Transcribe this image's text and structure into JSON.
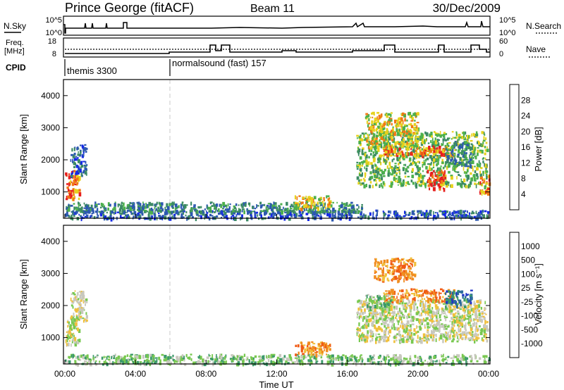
{
  "header": {
    "station": "Prince George (fitACF)",
    "beam": "Beam 11",
    "date": "30/Dec/2009"
  },
  "noise_panel": {
    "left_label": "N.Sky",
    "left_ticks": [
      "10^5",
      "10^0"
    ],
    "right_ticks": [
      "10^5",
      "10^0"
    ],
    "right_label": "N.Search"
  },
  "freq_panel": {
    "left_label_1": "Freq.",
    "left_label_2": "[MHz]",
    "left_ticks": [
      "18",
      "8"
    ],
    "right_ticks": [
      "60",
      "0"
    ],
    "right_label": "Nave"
  },
  "cpid": {
    "label": "CPID",
    "segments": [
      {
        "name": "themis 3300",
        "start_hour": 0
      },
      {
        "name": "normalsound (fast) 157",
        "start_hour": 6
      }
    ]
  },
  "chart_data": [
    {
      "type": "heatmap",
      "title": "Power",
      "ylabel": "Slant Range [km]",
      "xlabel": "Time UT",
      "x_range_hours": [
        0,
        24
      ],
      "ylim": [
        180,
        4500
      ],
      "y_ticks": [
        "4000",
        "3000",
        "2000",
        "1000"
      ],
      "colorbar_label": "Power [dB]",
      "colorbar_ticks": [
        "28",
        "24",
        "20",
        "16",
        "12",
        "8",
        "4"
      ],
      "colors": [
        "#1428e6",
        "#2c58b0",
        "#3c8a64",
        "#4cb04c",
        "#e6d21e",
        "#f07814",
        "#e61e1e"
      ],
      "regions": [
        {
          "t": [
            0.0,
            0.8
          ],
          "r": [
            800,
            1700
          ],
          "level": 5
        },
        {
          "t": [
            0.3,
            1.2
          ],
          "r": [
            1500,
            2500
          ],
          "level": 1
        },
        {
          "t": [
            0.0,
            24.0
          ],
          "r": [
            200,
            450
          ],
          "level": 1
        },
        {
          "t": [
            0.0,
            16.8
          ],
          "r": [
            400,
            700
          ],
          "level": 2
        },
        {
          "t": [
            13.0,
            15.0
          ],
          "r": [
            500,
            900
          ],
          "level": 4
        },
        {
          "t": [
            16.5,
            23.9
          ],
          "r": [
            1200,
            2900
          ],
          "level": 3
        },
        {
          "t": [
            17.0,
            20.0
          ],
          "r": [
            2400,
            3500
          ],
          "level": 4
        },
        {
          "t": [
            18.0,
            22.0
          ],
          "r": [
            2150,
            2450
          ],
          "level": 5
        },
        {
          "t": [
            20.5,
            21.5
          ],
          "r": [
            1100,
            1700
          ],
          "level": 6
        },
        {
          "t": [
            21.5,
            23.0
          ],
          "r": [
            1800,
            2600
          ],
          "level": 2
        },
        {
          "t": [
            23.4,
            24.0
          ],
          "r": [
            1000,
            1600
          ],
          "level": 5
        }
      ]
    },
    {
      "type": "heatmap",
      "title": "Velocity",
      "ylabel": "Slant Range [km]",
      "xlabel": "Time UT",
      "x_range_hours": [
        0,
        24
      ],
      "x_ticks": [
        "00:00",
        "04:00",
        "08:00",
        "12:00",
        "16:00",
        "20:00",
        "00:00"
      ],
      "ylim": [
        180,
        4500
      ],
      "y_ticks": [
        "4000",
        "3000",
        "2000",
        "1000"
      ],
      "colorbar_label": "Velocity [m s⁻¹]",
      "colorbar_ticks": [
        "1000",
        "500",
        "100",
        "25",
        "-25",
        "-100",
        "-500",
        "-1000"
      ],
      "colors": [
        "#1e32c8",
        "#2c6c9c",
        "#3c9a6a",
        "#78c850",
        "#c8c8be",
        "#f0c03c",
        "#f08c1e",
        "#f05a14",
        "#e61e1e"
      ],
      "regions": [
        {
          "t": [
            0.0,
            0.8
          ],
          "r": [
            800,
            1700
          ],
          "level": 4
        },
        {
          "t": [
            0.3,
            1.2
          ],
          "r": [
            1500,
            2500
          ],
          "level": 4
        },
        {
          "t": [
            0.0,
            24.0
          ],
          "r": [
            200,
            500
          ],
          "level": 3
        },
        {
          "t": [
            13.0,
            15.0
          ],
          "r": [
            500,
            900
          ],
          "level": 6
        },
        {
          "t": [
            16.5,
            23.9
          ],
          "r": [
            900,
            2200
          ],
          "level": 4
        },
        {
          "t": [
            17.5,
            19.8
          ],
          "r": [
            2800,
            3500
          ],
          "level": 6
        },
        {
          "t": [
            18.0,
            22.0
          ],
          "r": [
            2150,
            2550
          ],
          "level": 6
        },
        {
          "t": [
            17.0,
            18.5
          ],
          "r": [
            1900,
            2400
          ],
          "level": 3
        },
        {
          "t": [
            21.5,
            23.0
          ],
          "r": [
            2000,
            2500
          ],
          "level": 1
        }
      ]
    }
  ]
}
